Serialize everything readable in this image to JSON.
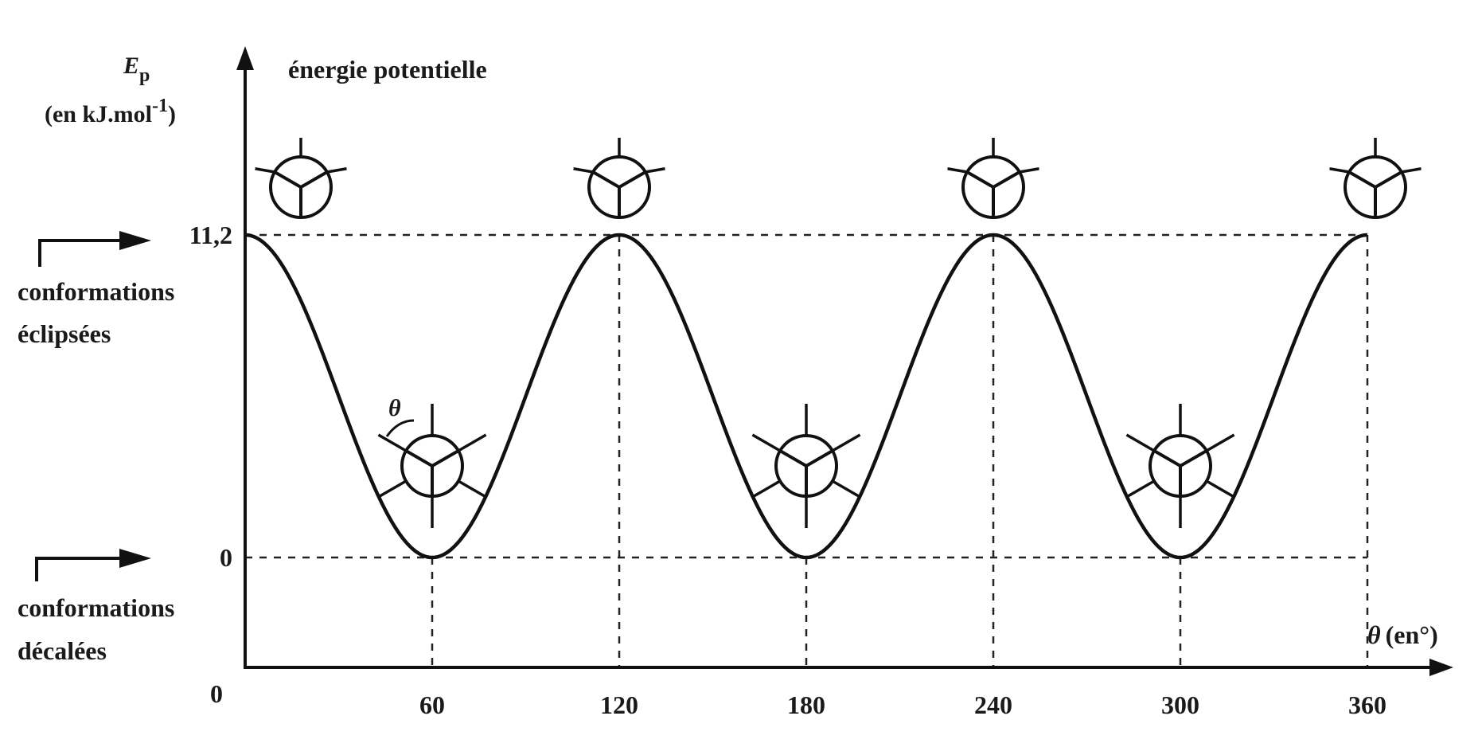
{
  "chart_data": {
    "type": "line",
    "title": "énergie potentielle",
    "ylabel_symbol": "E",
    "ylabel_subscript": "p",
    "ylabel_unit_main": "(en kJ.mol",
    "ylabel_unit_exp": "-1",
    "ylabel_unit_close": ")",
    "xlabel_symbol": "θ",
    "xlabel_unit": "(en°)",
    "origin_label": "0",
    "x_ticks": [
      60,
      120,
      180,
      240,
      300,
      360
    ],
    "y_ticks": [
      {
        "value": 11.2,
        "label": "11,2"
      },
      {
        "value": 0,
        "label": "0"
      }
    ],
    "xlim": [
      0,
      360
    ],
    "ylim": [
      0,
      11.2
    ],
    "series": [
      {
        "function": "E = 5.6 × (1 + cos(3θ))",
        "x": [
          0,
          30,
          60,
          90,
          120,
          150,
          180,
          210,
          240,
          270,
          300,
          330,
          360
        ],
        "y": [
          11.2,
          5.6,
          0,
          5.6,
          11.2,
          5.6,
          0,
          5.6,
          11.2,
          5.6,
          0,
          5.6,
          11.2
        ]
      }
    ],
    "annotations": {
      "eclipsed_line1": "conformations",
      "eclipsed_line2": "éclipsées",
      "staggered_line1": "conformations",
      "staggered_line2": "décalées",
      "angle_symbol": "θ"
    },
    "newman_eclipsed_at": [
      0,
      120,
      240,
      360
    ],
    "newman_staggered_at": [
      60,
      180,
      300
    ],
    "grid": "dashed guides at extrema",
    "line_color": "#111111"
  }
}
